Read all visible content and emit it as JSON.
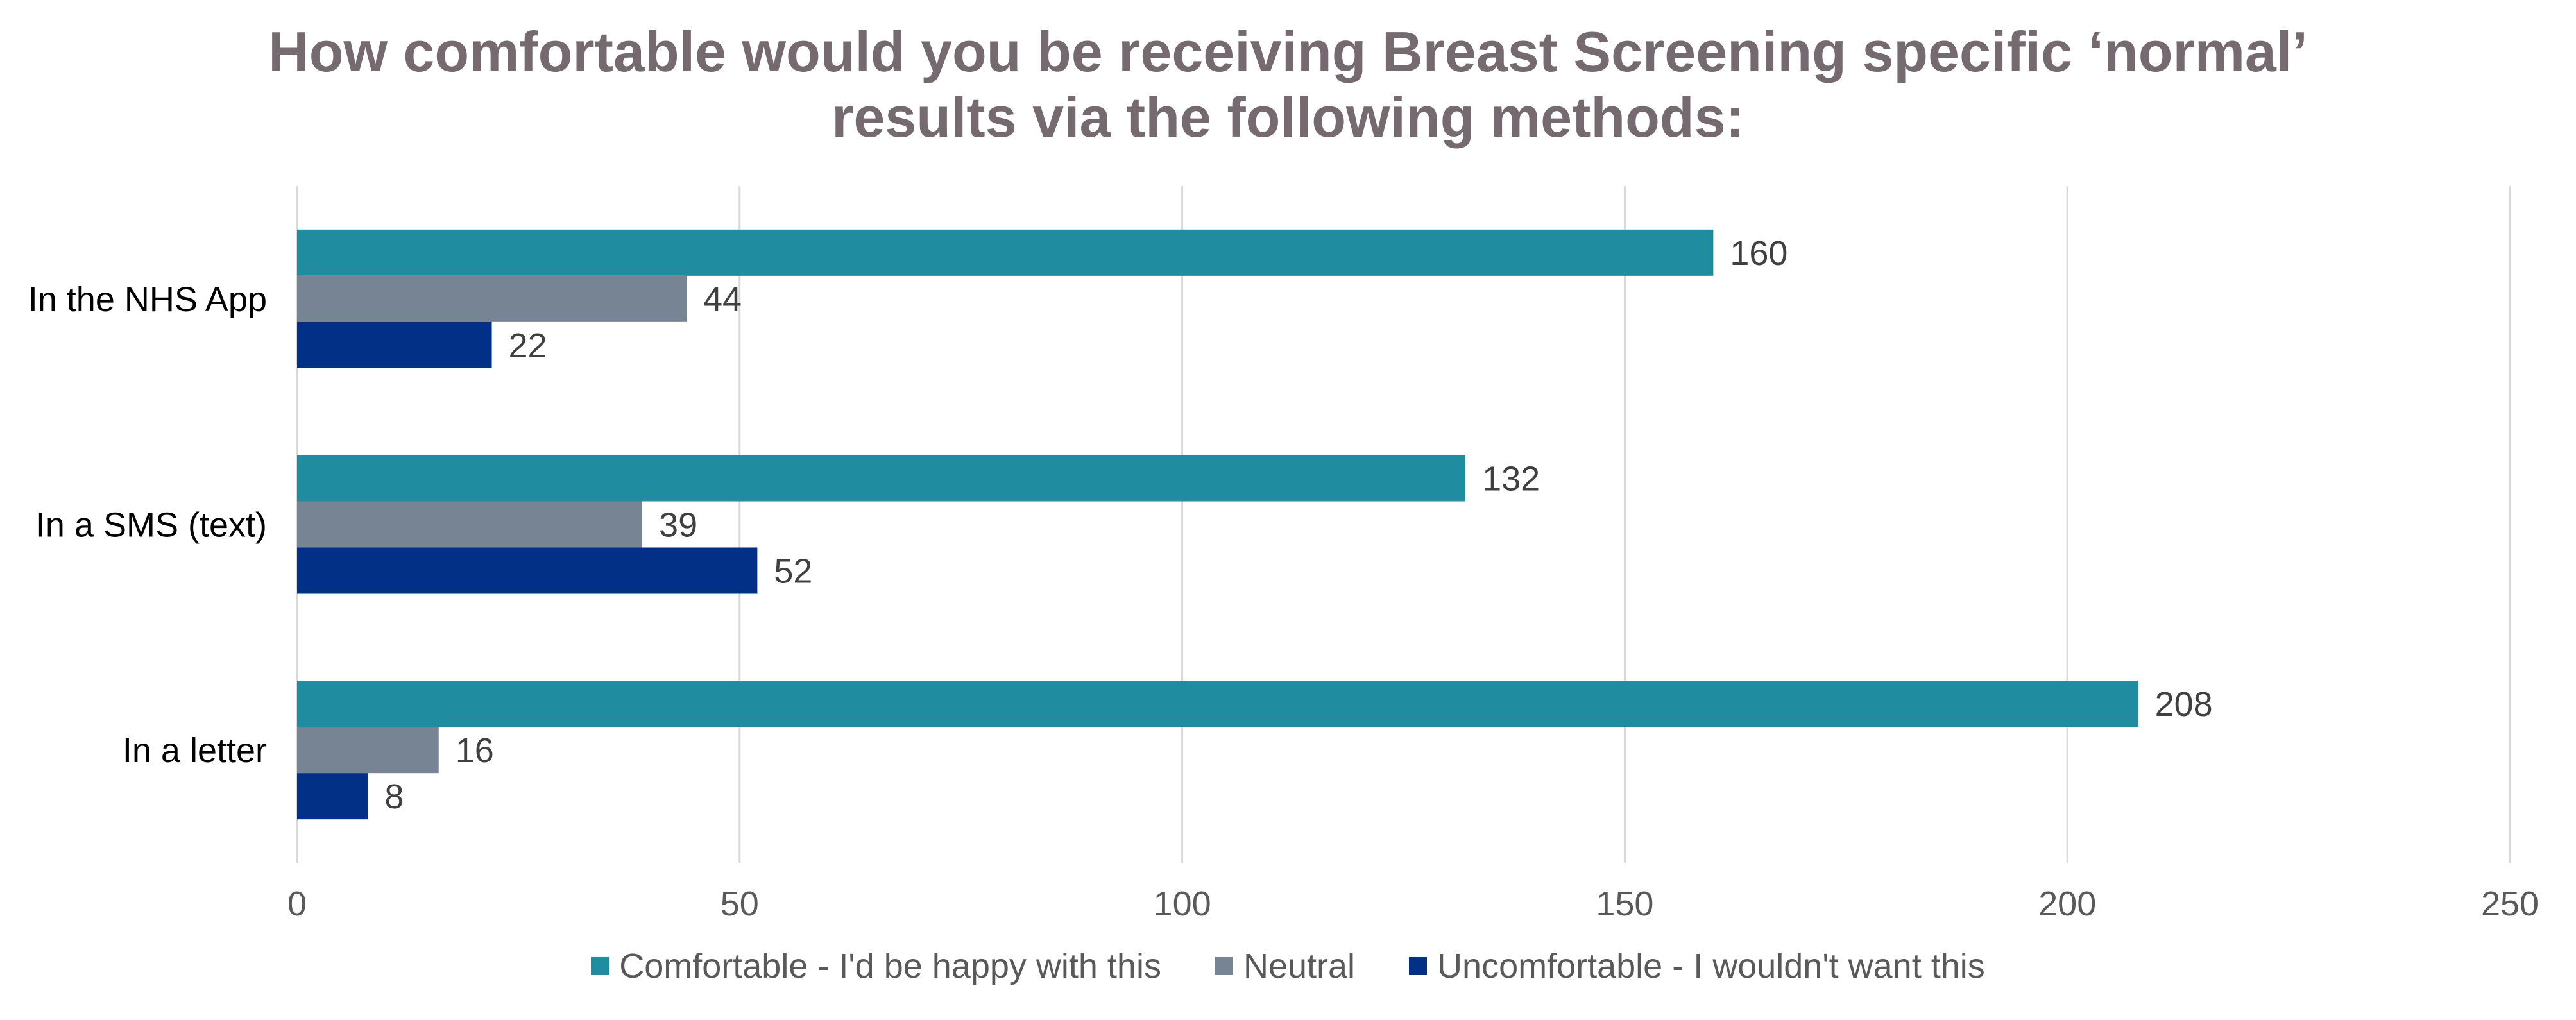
{
  "chart_data": {
    "type": "bar",
    "orientation": "horizontal",
    "title_lines": [
      "How comfortable would you be receiving Breast Screening specific ‘normal’",
      "results via the following methods:"
    ],
    "categories": [
      "In the NHS App",
      "In a SMS (text)",
      "In a letter"
    ],
    "series": [
      {
        "name": "Comfortable - I'd be happy with this",
        "color": "#208c9f",
        "values": [
          160,
          132,
          208
        ]
      },
      {
        "name": "Neutral",
        "color": "#768493",
        "values": [
          44,
          39,
          16
        ]
      },
      {
        "name": "Uncomfortable - I wouldn't want this",
        "color": "#023087",
        "values": [
          22,
          52,
          8
        ]
      }
    ],
    "xlim": [
      0,
      250
    ],
    "xticks": [
      0,
      50,
      100,
      150,
      200,
      250
    ],
    "grid": "vertical",
    "legend_position": "bottom",
    "data_labels": true
  }
}
